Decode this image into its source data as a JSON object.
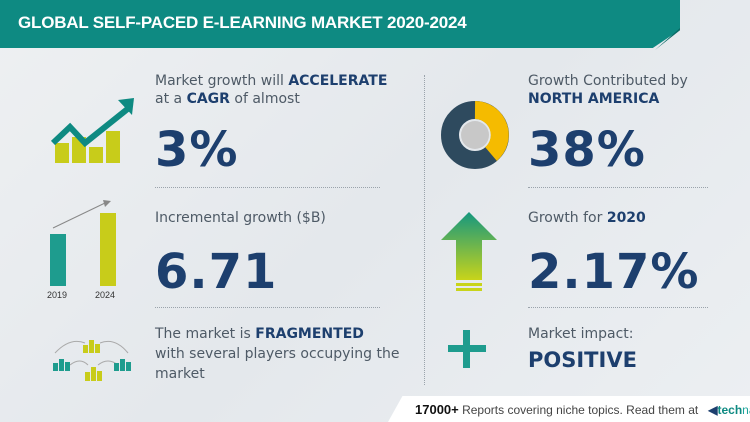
{
  "header": {
    "title": "GLOBAL SELF-PACED E-LEARNING MARKET 2020-2024"
  },
  "left": {
    "cagr": {
      "line1_pre": "Market growth will ",
      "line1_bold": "ACCELERATE",
      "line2_pre": "at a ",
      "line2_bold": "CAGR",
      "line2_post": " of almost",
      "value": "3%"
    },
    "incremental": {
      "label": "Incremental growth ($B)",
      "value": "6.71",
      "bar_years": [
        "2019",
        "2024"
      ]
    },
    "fragmented": {
      "line1_pre": "The market is ",
      "line1_bold": "FRAGMENTED",
      "line2": "with several players occupying the",
      "line3": "market"
    }
  },
  "right": {
    "region": {
      "line1": "Growth Contributed by",
      "line2": "NORTH AMERICA",
      "value": "38%"
    },
    "yoy": {
      "label_pre": "Growth for ",
      "label_bold": "2020",
      "value": "2.17%"
    },
    "impact": {
      "label": "Market impact:",
      "value": "POSITIVE"
    }
  },
  "footer": {
    "count": "17000+",
    "text": "Reports covering niche topics. Read them at",
    "logo_a": "tech",
    "logo_b": "navio"
  },
  "colors": {
    "teal": "#0e8a82",
    "navy": "#1d3f6e",
    "yellow": "#c8cc1a",
    "gold": "#f5bb00"
  }
}
